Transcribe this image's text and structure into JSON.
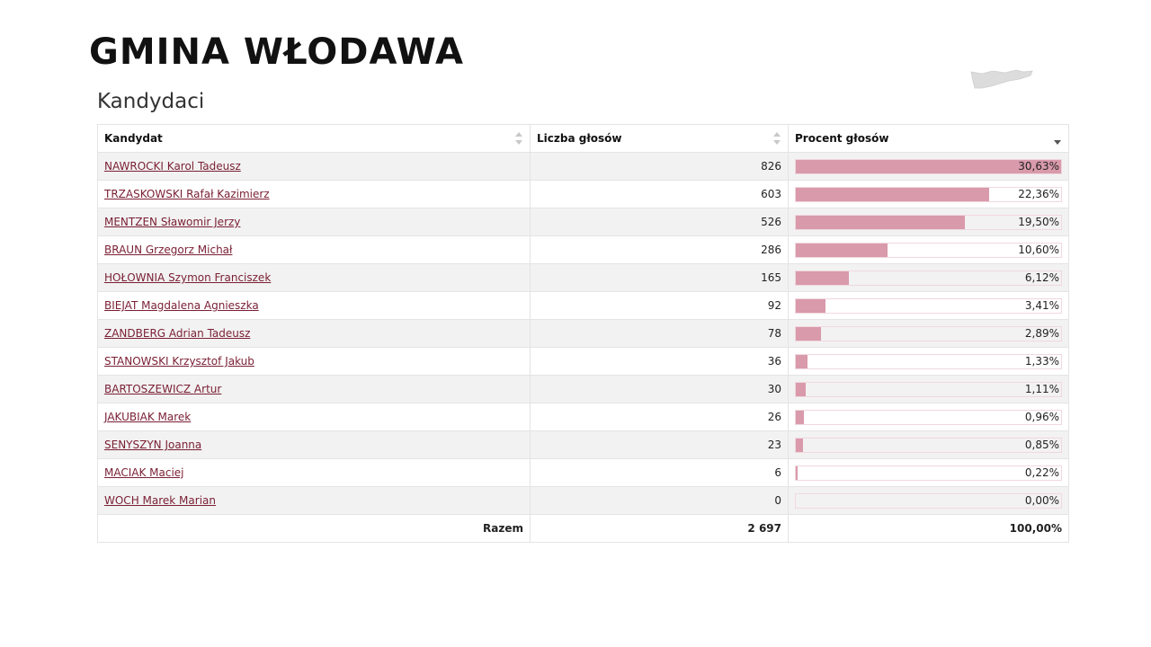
{
  "page": {
    "title": "GMINA WŁODAWA",
    "section_title": "Kandydaci",
    "map_icon": "region-map-silhouette"
  },
  "table": {
    "headers": {
      "candidate": "Kandydat",
      "votes": "Liczba głosów",
      "percent": "Procent głosów"
    },
    "sort": {
      "column": "percent",
      "direction": "descending"
    },
    "bar_color": "#d99aab",
    "link_color": "#7a1f33",
    "rows": [
      {
        "name": "NAWROCKI Karol Tadeusz",
        "votes": "826",
        "percent": "30,63%",
        "share": 0.3063
      },
      {
        "name": "TRZASKOWSKI Rafał Kazimierz",
        "votes": "603",
        "percent": "22,36%",
        "share": 0.2236
      },
      {
        "name": "MENTZEN Sławomir Jerzy",
        "votes": "526",
        "percent": "19,50%",
        "share": 0.195
      },
      {
        "name": "BRAUN Grzegorz Michał",
        "votes": "286",
        "percent": "10,60%",
        "share": 0.106
      },
      {
        "name": "HOŁOWNIA Szymon Franciszek",
        "votes": "165",
        "percent": "6,12%",
        "share": 0.0612
      },
      {
        "name": "BIEJAT Magdalena Agnieszka",
        "votes": "92",
        "percent": "3,41%",
        "share": 0.0341
      },
      {
        "name": "ZANDBERG Adrian Tadeusz",
        "votes": "78",
        "percent": "2,89%",
        "share": 0.0289
      },
      {
        "name": "STANOWSKI Krzysztof Jakub",
        "votes": "36",
        "percent": "1,33%",
        "share": 0.0133
      },
      {
        "name": "BARTOSZEWICZ Artur",
        "votes": "30",
        "percent": "1,11%",
        "share": 0.0111
      },
      {
        "name": "JAKUBIAK Marek",
        "votes": "26",
        "percent": "0,96%",
        "share": 0.0096
      },
      {
        "name": "SENYSZYN Joanna",
        "votes": "23",
        "percent": "0,85%",
        "share": 0.0085
      },
      {
        "name": "MACIAK Maciej",
        "votes": "6",
        "percent": "0,22%",
        "share": 0.0022
      },
      {
        "name": "WOCH Marek Marian",
        "votes": "0",
        "percent": "0,00%",
        "share": 0.0
      }
    ],
    "total": {
      "label": "Razem",
      "votes": "2 697",
      "percent": "100,00%"
    }
  }
}
